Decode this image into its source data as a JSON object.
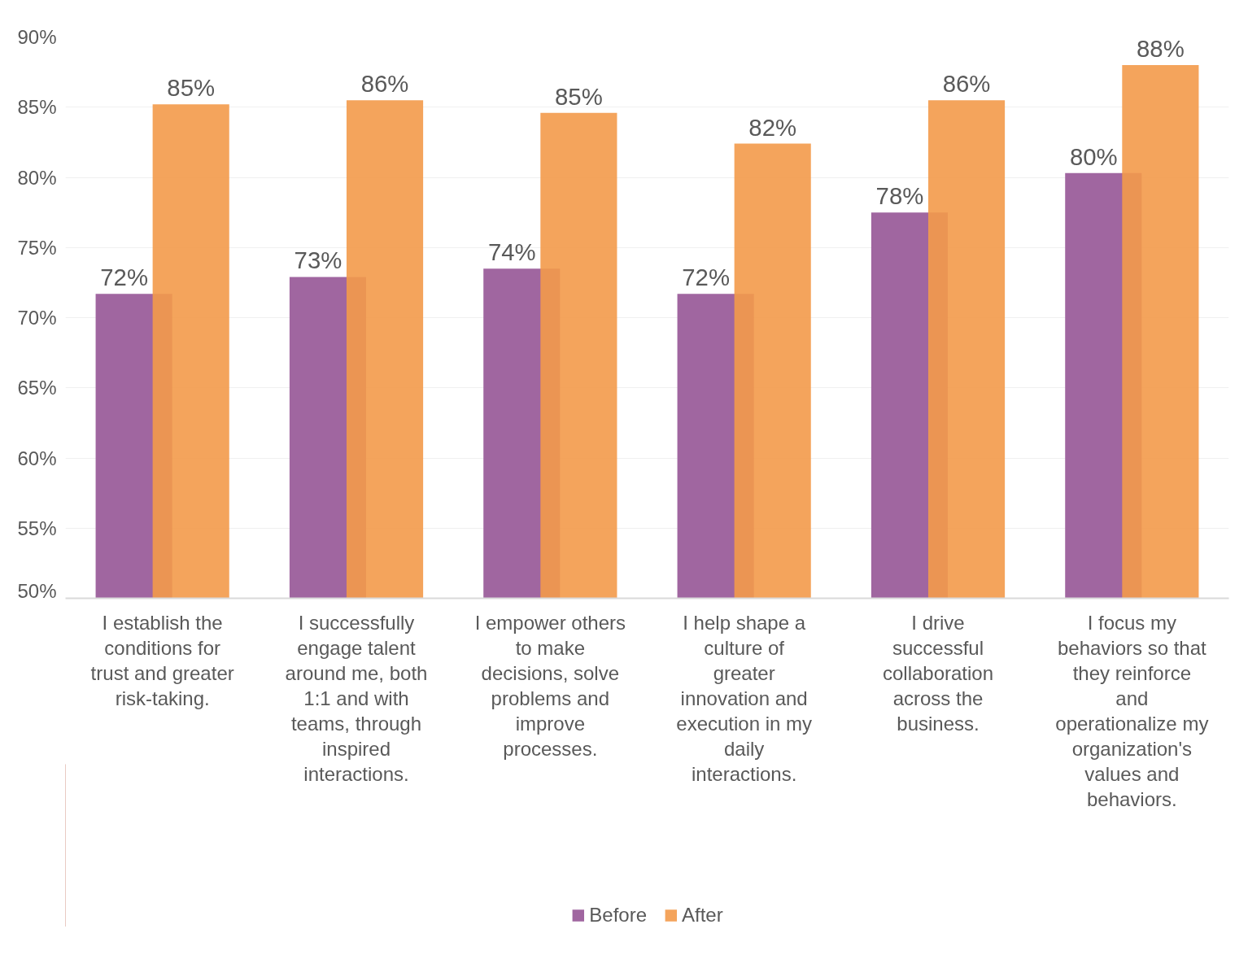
{
  "chart_data": {
    "type": "bar",
    "categories": [
      "I establish the conditions for trust and greater risk-taking.",
      "I successfully engage talent around me, both 1:1 and with teams, through inspired interactions.",
      "I empower others to make decisions, solve problems and improve processes.",
      "I help shape a culture of greater innovation and execution in my daily interactions.",
      "I drive successful collaboration across the business.",
      "I focus my behaviors so that they reinforce and operationalize my organization's values and behaviors."
    ],
    "series": [
      {
        "name": "Before",
        "color": "#a066a0",
        "values": [
          71.7,
          72.9,
          73.5,
          71.7,
          77.5,
          80.3
        ],
        "value_labels": [
          "72%",
          "73%",
          "74%",
          "72%",
          "78%",
          "80%"
        ]
      },
      {
        "name": "After",
        "color": "#f39a4a",
        "values": [
          85.2,
          85.5,
          84.6,
          82.4,
          85.5,
          88.0
        ],
        "value_labels": [
          "85%",
          "86%",
          "85%",
          "82%",
          "86%",
          "88%"
        ]
      }
    ],
    "ylim": [
      50,
      90
    ],
    "yticks": [
      {
        "value": 50,
        "label": "50%"
      },
      {
        "value": 55,
        "label": "55%"
      },
      {
        "value": 60,
        "label": "60%"
      },
      {
        "value": 65,
        "label": "65%"
      },
      {
        "value": 70,
        "label": "70%"
      },
      {
        "value": 75,
        "label": "75%"
      },
      {
        "value": 80,
        "label": "80%"
      },
      {
        "value": 85,
        "label": "85%"
      },
      {
        "value": 90,
        "label": "90%"
      }
    ],
    "grid": "y",
    "legend": "bottom"
  }
}
